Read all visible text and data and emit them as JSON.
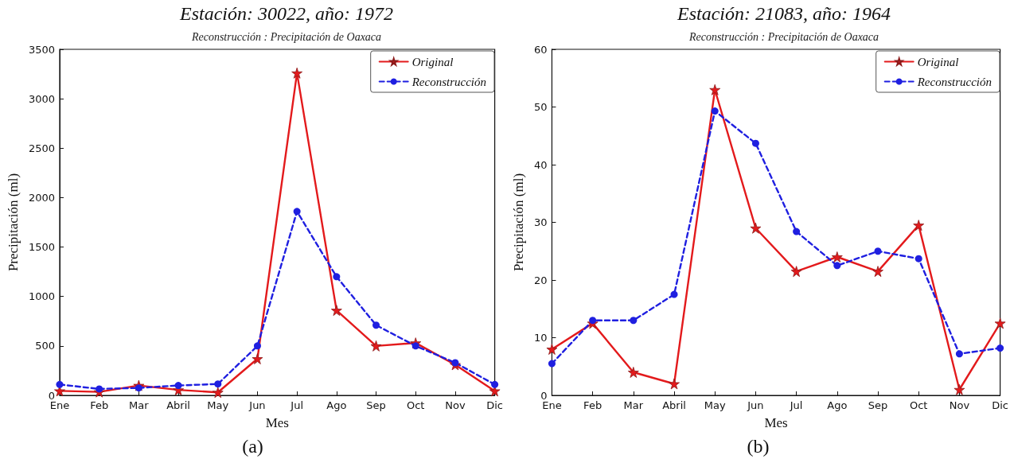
{
  "chart_data": [
    {
      "type": "line",
      "title": "Estación: 30022, año: 1972",
      "subtitle": "Reconstrucción : Precipitación de Oaxaca",
      "xlabel": "Mes",
      "ylabel": "Precipitación (ml)",
      "annotations": [
        "(a)"
      ],
      "categories": [
        "Ene",
        "Feb",
        "Mar",
        "Abril",
        "May",
        "Jun",
        "Jul",
        "Ago",
        "Sep",
        "Oct",
        "Nov",
        "Dic"
      ],
      "series": [
        {
          "name": "Original",
          "color": "#e31a1c",
          "marker": "star",
          "line_style": "solid",
          "values": [
            45,
            35,
            100,
            55,
            30,
            370,
            3260,
            860,
            500,
            530,
            310,
            45
          ]
        },
        {
          "name": "Reconstrucción",
          "color": "#1f1fe0",
          "marker": "circle",
          "line_style": "dashed",
          "values": [
            110,
            65,
            75,
            100,
            115,
            500,
            1860,
            1200,
            710,
            500,
            330,
            110
          ]
        }
      ],
      "ylim": [
        0,
        3500
      ],
      "yticks": [
        0,
        500,
        1000,
        1500,
        2000,
        2500,
        3000,
        3500
      ],
      "grid": false,
      "legend": "top right"
    },
    {
      "type": "line",
      "title": "Estación: 21083, año: 1964",
      "subtitle": "Reconstrucción : Precipitación de Oaxaca",
      "xlabel": "Mes",
      "ylabel": "Precipitación (ml)",
      "annotations": [
        "(b)"
      ],
      "categories": [
        "Ene",
        "Feb",
        "Mar",
        "Abril",
        "May",
        "Jun",
        "Jul",
        "Ago",
        "Sep",
        "Oct",
        "Nov",
        "Dic"
      ],
      "series": [
        {
          "name": "Original",
          "color": "#e31a1c",
          "marker": "star",
          "line_style": "solid",
          "values": [
            8,
            12.5,
            4,
            2,
            53,
            29,
            21.5,
            24,
            21.5,
            29.5,
            1,
            12.5
          ]
        },
        {
          "name": "Reconstrucción",
          "color": "#1f1fe0",
          "marker": "circle",
          "line_style": "dashed",
          "values": [
            5.5,
            13,
            13,
            17.5,
            49.3,
            43.7,
            28.4,
            22.5,
            25,
            23.7,
            7.2,
            8.2
          ]
        }
      ],
      "ylim": [
        0,
        60
      ],
      "yticks": [
        0,
        10,
        20,
        30,
        40,
        50,
        60
      ],
      "grid": false,
      "legend": "top right"
    }
  ]
}
